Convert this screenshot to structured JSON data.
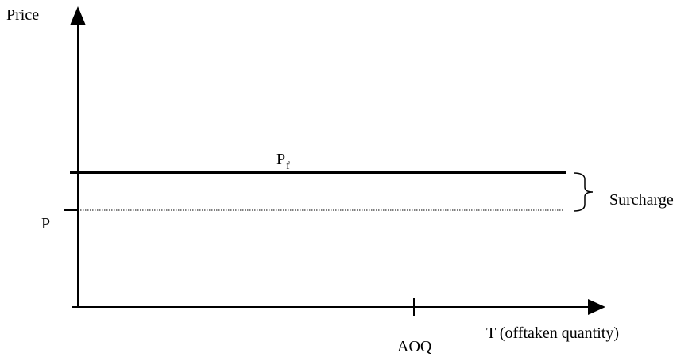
{
  "labels": {
    "y_axis": "Price",
    "x_axis": "T (offtaken quantity)",
    "fixed_price_main": "P",
    "fixed_price_sub": "f",
    "base_price": "P",
    "aoq_tick": "AOQ",
    "surcharge": "Surcharge"
  },
  "colors": {
    "ink": "#000000",
    "background": "#ffffff"
  }
}
